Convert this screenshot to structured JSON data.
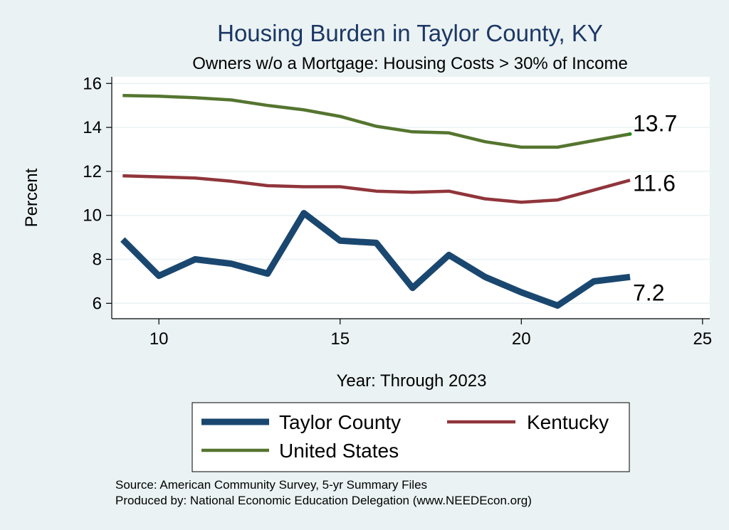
{
  "chart_data": {
    "type": "line",
    "title": "Housing Burden in Taylor County, KY",
    "subtitle": "Owners w/o a Mortgage: Housing Costs > 30% of Income",
    "xlabel": "Year: Through 2023",
    "ylabel": "Percent",
    "xlim": [
      8.7,
      25.2
    ],
    "ylim": [
      5.3,
      16.3
    ],
    "xticks": [
      10,
      15,
      20,
      25
    ],
    "yticks": [
      6,
      8,
      10,
      12,
      14,
      16
    ],
    "grid": true,
    "legend_position": "bottom",
    "x": [
      9,
      10,
      11,
      12,
      13,
      14,
      15,
      16,
      17,
      18,
      19,
      20,
      21,
      22,
      23
    ],
    "series": [
      {
        "name": "Taylor County",
        "color": "#1a476f",
        "values": [
          8.9,
          7.25,
          8.0,
          7.8,
          7.35,
          10.1,
          8.85,
          8.75,
          6.7,
          8.2,
          7.2,
          6.5,
          5.9,
          7.0,
          7.2
        ],
        "end_label": "7.2"
      },
      {
        "name": "Kentucky",
        "color": "#90353b",
        "values": [
          11.8,
          11.75,
          11.7,
          11.55,
          11.35,
          11.3,
          11.3,
          11.1,
          11.05,
          11.1,
          10.75,
          10.6,
          10.7,
          11.15,
          11.6
        ],
        "end_label": "11.6"
      },
      {
        "name": "United States",
        "color": "#55752f",
        "values": [
          15.45,
          15.42,
          15.35,
          15.25,
          15.0,
          14.8,
          14.5,
          14.05,
          13.8,
          13.75,
          13.35,
          13.1,
          13.1,
          13.4,
          13.7
        ],
        "end_label": "13.7"
      }
    ]
  },
  "footer": {
    "source": "Source: American Community Survey, 5-yr Summary Files",
    "produced_by": "Produced by: National Economic Education Delegation (www.NEEDEcon.org)"
  }
}
